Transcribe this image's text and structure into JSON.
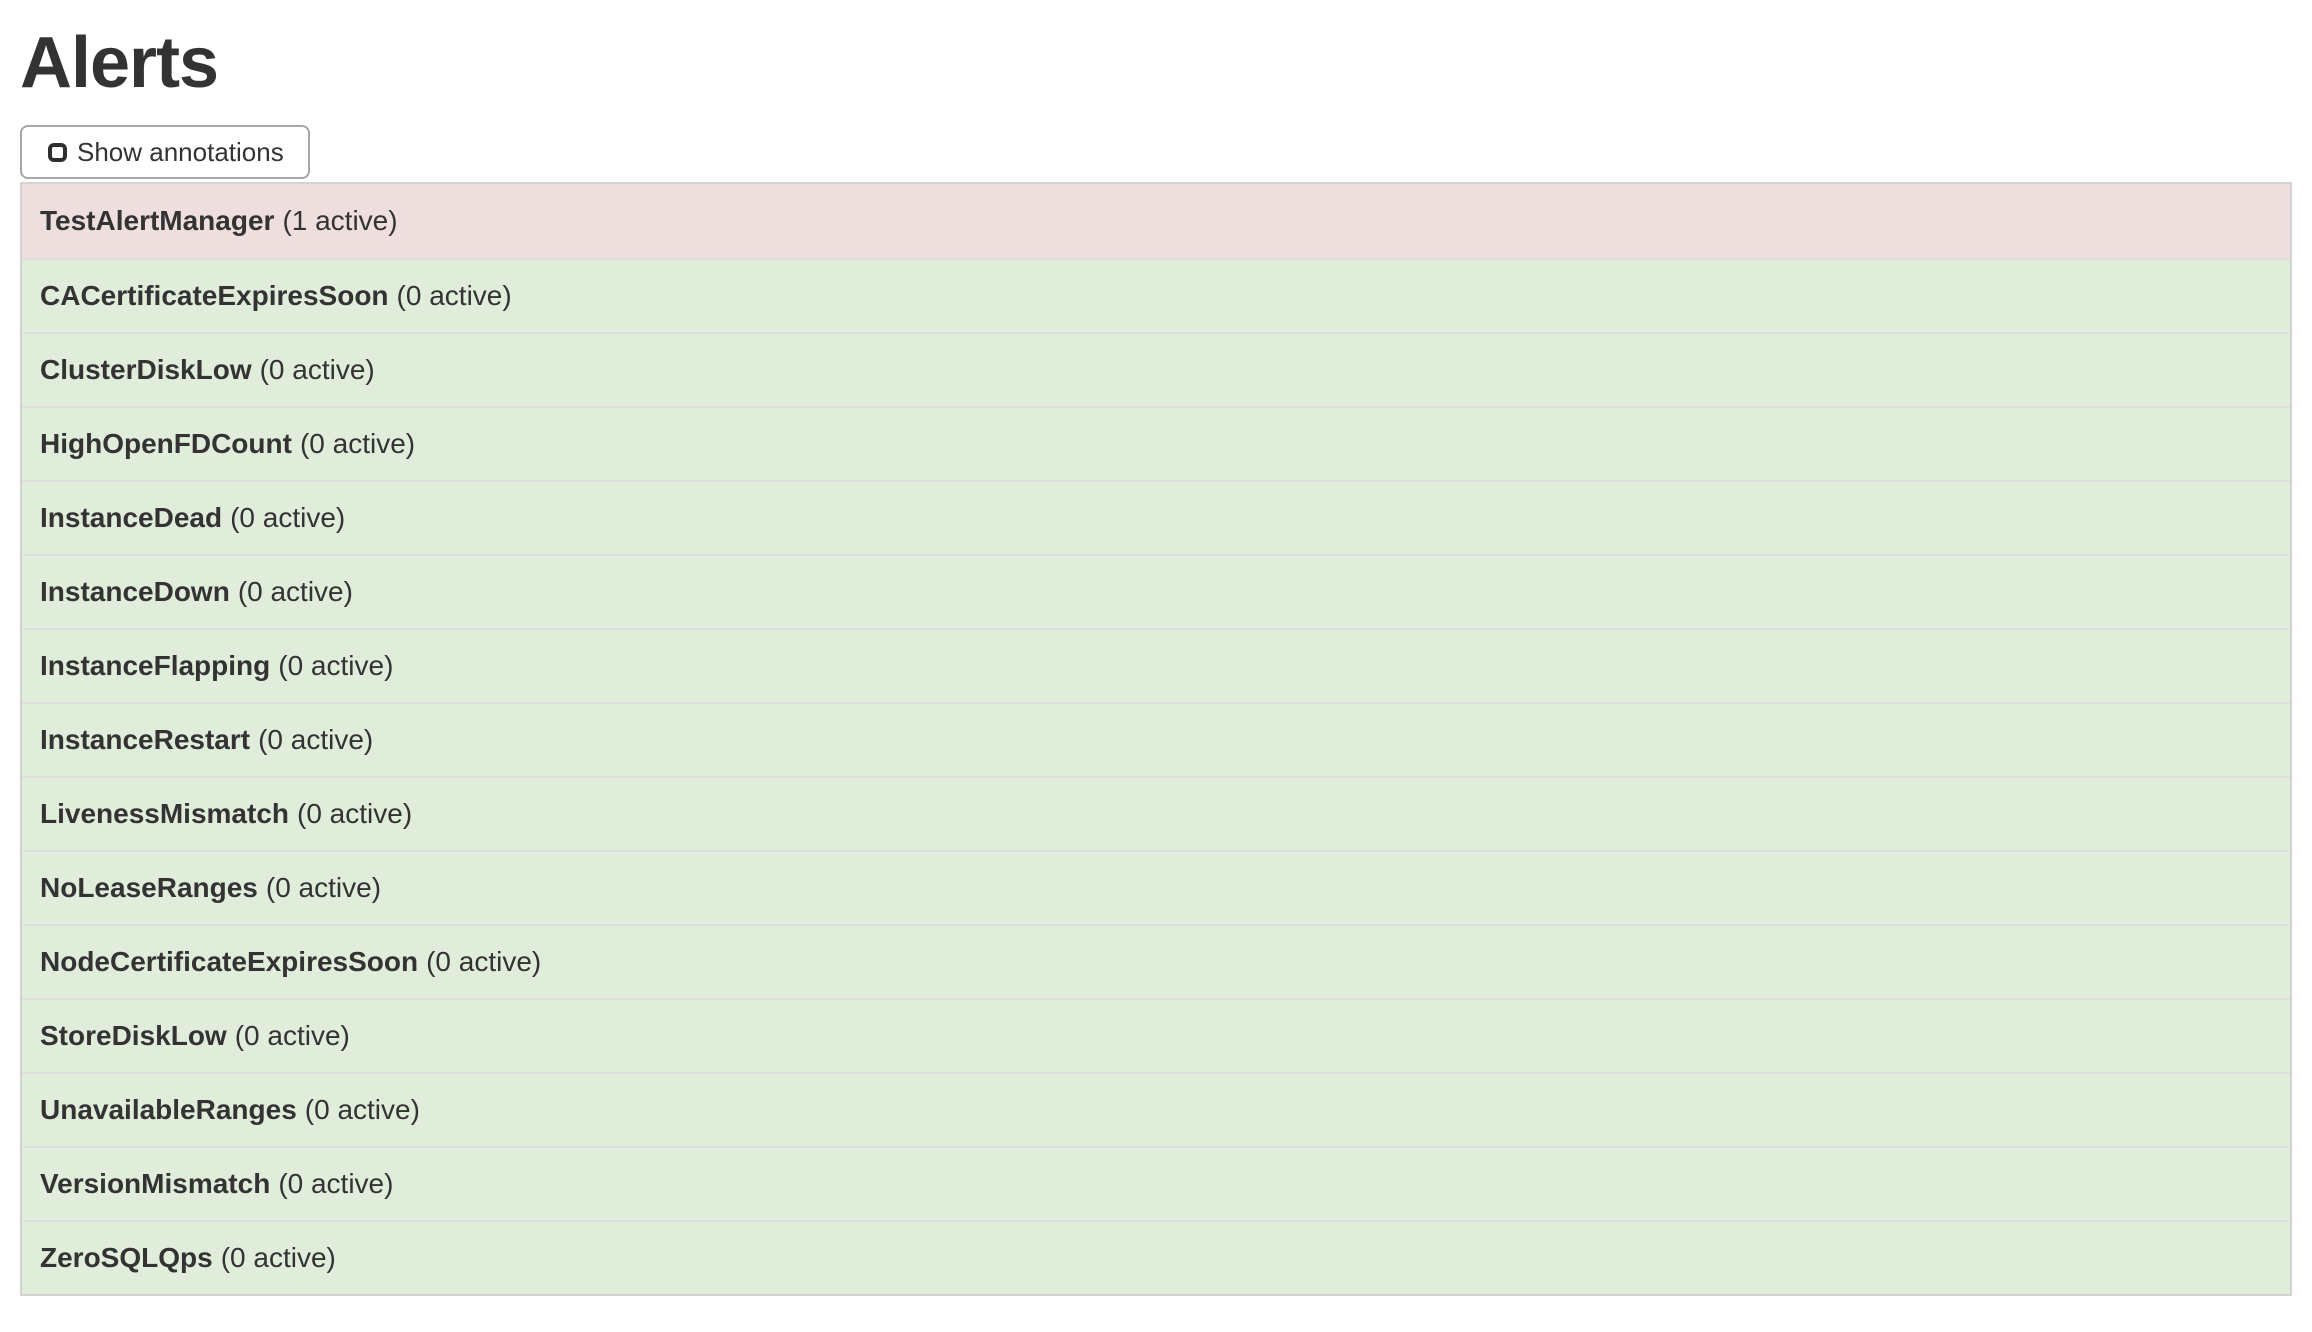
{
  "page": {
    "title": "Alerts"
  },
  "toolbar": {
    "show_annotations_label": "Show annotations",
    "checkbox_checked": false
  },
  "colors": {
    "firing_row_bg": "#eedede",
    "inactive_row_bg": "#e1eddb",
    "row_separator": "#dedede",
    "table_border": "#d3d3d3",
    "button_border": "#a6a6a6",
    "text": "#333333"
  },
  "alerts": [
    {
      "name": "TestAlertManager",
      "count_label": "(1 active)",
      "state": "firing"
    },
    {
      "name": "CACertificateExpiresSoon",
      "count_label": "(0 active)",
      "state": "inactive"
    },
    {
      "name": "ClusterDiskLow",
      "count_label": "(0 active)",
      "state": "inactive"
    },
    {
      "name": "HighOpenFDCount",
      "count_label": "(0 active)",
      "state": "inactive"
    },
    {
      "name": "InstanceDead",
      "count_label": "(0 active)",
      "state": "inactive"
    },
    {
      "name": "InstanceDown",
      "count_label": "(0 active)",
      "state": "inactive"
    },
    {
      "name": "InstanceFlapping",
      "count_label": "(0 active)",
      "state": "inactive"
    },
    {
      "name": "InstanceRestart",
      "count_label": "(0 active)",
      "state": "inactive"
    },
    {
      "name": "LivenessMismatch",
      "count_label": "(0 active)",
      "state": "inactive"
    },
    {
      "name": "NoLeaseRanges",
      "count_label": "(0 active)",
      "state": "inactive"
    },
    {
      "name": "NodeCertificateExpiresSoon",
      "count_label": "(0 active)",
      "state": "inactive"
    },
    {
      "name": "StoreDiskLow",
      "count_label": "(0 active)",
      "state": "inactive"
    },
    {
      "name": "UnavailableRanges",
      "count_label": "(0 active)",
      "state": "inactive"
    },
    {
      "name": "VersionMismatch",
      "count_label": "(0 active)",
      "state": "inactive"
    },
    {
      "name": "ZeroSQLQps",
      "count_label": "(0 active)",
      "state": "inactive"
    }
  ]
}
